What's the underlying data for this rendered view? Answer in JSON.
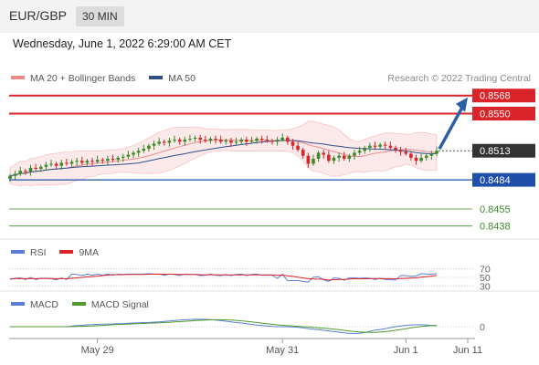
{
  "header": {
    "symbol": "EUR/GBP",
    "timeframe": "30 MIN"
  },
  "datetime": "Wednesday, June 1, 2022 6:29:00 AM CET",
  "legend_main": [
    {
      "label": "MA 20 + Bollinger Bands",
      "color": "#f08a8a"
    },
    {
      "label": "MA 50",
      "color": "#2c4f8c"
    }
  ],
  "credit": "Research © 2022 Trading Central",
  "legend_rsi": [
    {
      "label": "RSI",
      "color": "#5b7fd4"
    },
    {
      "label": "9MA",
      "color": "#d9252a"
    }
  ],
  "legend_macd": [
    {
      "label": "MACD",
      "color": "#5b7fd4"
    },
    {
      "label": "MACD Signal",
      "color": "#4f9c2e"
    }
  ],
  "colors": {
    "resistance": "#d9252a",
    "support": "#1f4fa8",
    "minor_support": "#3a8a2a",
    "current": "#333333",
    "candle_up": "#3a8a2a",
    "candle_down": "#d9252a",
    "arrow": "#2d5ea8"
  },
  "chart_data": {
    "type": "candlestick",
    "price_range": [
      0.8425,
      0.8585
    ],
    "levels": [
      {
        "value": 0.8568,
        "label": "0.8568",
        "kind": "resistance"
      },
      {
        "value": 0.855,
        "label": "0.8550",
        "kind": "resistance"
      },
      {
        "value": 0.8513,
        "label": "0.8513",
        "kind": "current"
      },
      {
        "value": 0.8484,
        "label": "0.8484",
        "kind": "support"
      },
      {
        "value": 0.8455,
        "label": "0.8455",
        "kind": "minor_support"
      },
      {
        "value": 0.8438,
        "label": "0.8438",
        "kind": "minor_support"
      }
    ],
    "arrow": {
      "from": 0.8513,
      "to": 0.8568
    },
    "close": [
      0.8488,
      0.849,
      0.8493,
      0.8492,
      0.8496,
      0.8495,
      0.8497,
      0.8499,
      0.85,
      0.8498,
      0.8501,
      0.85,
      0.8502,
      0.8503,
      0.8501,
      0.8503,
      0.8502,
      0.8504,
      0.8503,
      0.8505,
      0.8504,
      0.8506,
      0.8507,
      0.8509,
      0.8511,
      0.8513,
      0.8515,
      0.8518,
      0.852,
      0.8522,
      0.8521,
      0.8523,
      0.8524,
      0.8522,
      0.8524,
      0.8525,
      0.8526,
      0.8524,
      0.8523,
      0.8525,
      0.8524,
      0.8522,
      0.8523,
      0.8521,
      0.8522,
      0.8524,
      0.8522,
      0.8523,
      0.8525,
      0.8524,
      0.8523,
      0.8522,
      0.8524,
      0.8526,
      0.8522,
      0.8518,
      0.8514,
      0.8508,
      0.85,
      0.8505,
      0.8511,
      0.8509,
      0.8503,
      0.8506,
      0.8508,
      0.8505,
      0.8508,
      0.8511,
      0.8513,
      0.8516,
      0.8518,
      0.8517,
      0.8519,
      0.8518,
      0.8516,
      0.8514,
      0.8512,
      0.851,
      0.8506,
      0.8503,
      0.8506,
      0.8508,
      0.851,
      0.8513
    ],
    "rsi": {
      "levels": [
        70,
        50,
        30
      ],
      "labels": [
        "70",
        "50",
        "30"
      ]
    },
    "macd": {
      "zero_label": "0"
    },
    "x_ticks": [
      {
        "label": "May 29",
        "index": 17
      },
      {
        "label": "May 31",
        "index": 53
      },
      {
        "label": "Jun 1",
        "index": 77
      },
      {
        "label": "Jun 11",
        "index": 90
      }
    ]
  }
}
